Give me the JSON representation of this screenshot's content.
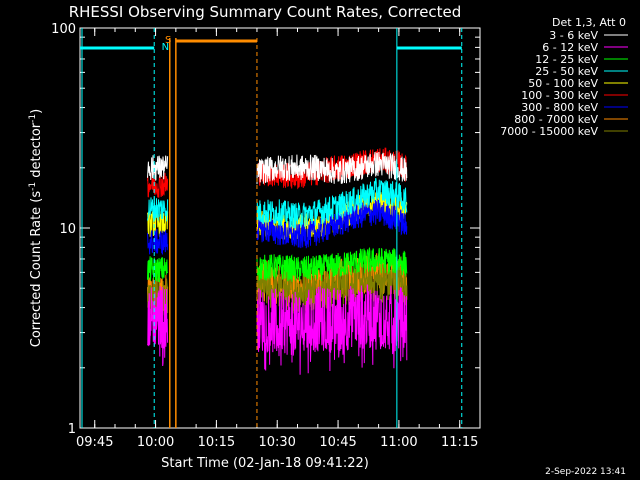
{
  "chart_data": {
    "type": "line",
    "title": "RHESSI Observing Summary Count Rates, Corrected",
    "xlabel": "Start Time (02-Jan-18 09:41:22)",
    "ylabel": "Corrected Count Rate (s⁻¹ detector⁻¹)",
    "ylabel_main": "Corrected Count Rate (s",
    "ylabel_exp1": "-1",
    "ylabel_mid": " detector",
    "ylabel_exp2": "-1",
    "ylabel_end": ")",
    "y_scale": "log",
    "ylim": [
      1,
      100
    ],
    "xlim": [
      "09:41:22",
      "11:20:00"
    ],
    "x_ticks": [
      "09:45",
      "10:00",
      "10:15",
      "10:30",
      "10:45",
      "11:00",
      "11:15"
    ],
    "y_ticks": [
      "1",
      "10",
      "100"
    ],
    "grid": false,
    "legend_position": "top-right",
    "legend_header": "Det 1,3, Att 0",
    "timestamp": "2-Sep-2022 13:41",
    "data_gap": [
      "10:05",
      "10:25"
    ],
    "series": [
      {
        "name": "3 - 6 keV",
        "color": "#ffffff",
        "segments": [
          {
            "t": [
              "09:58",
              "09:59",
              "10:00",
              "10:02",
              "10:03"
            ],
            "y": [
              20,
              20,
              20,
              20,
              20
            ]
          },
          {
            "t": [
              "10:25",
              "10:30",
              "10:35",
              "10:40",
              "10:45",
              "10:50",
              "10:55",
              "11:00",
              "11:02"
            ],
            "y": [
              19,
              20,
              20,
              20,
              19,
              20,
              21,
              20,
              19
            ]
          }
        ]
      },
      {
        "name": "6 - 12 keV",
        "color": "#ff00ff",
        "segments": [
          {
            "t": [
              "09:58",
              "10:00",
              "10:03"
            ],
            "y": [
              3.6,
              3.6,
              3.6
            ]
          },
          {
            "t": [
              "10:25",
              "10:30",
              "10:35",
              "10:40",
              "10:45",
              "10:50",
              "10:55",
              "11:00",
              "11:02"
            ],
            "y": [
              3.5,
              3.4,
              3.3,
              3.5,
              3.5,
              3.6,
              3.6,
              3.5,
              3.5
            ]
          }
        ]
      },
      {
        "name": "12 - 25 keV",
        "color": "#00ff00",
        "segments": [
          {
            "t": [
              "09:58",
              "10:00",
              "10:03"
            ],
            "y": [
              6.2,
              6.2,
              6.2
            ]
          },
          {
            "t": [
              "10:25",
              "10:30",
              "10:35",
              "10:40",
              "10:45",
              "10:50",
              "10:55",
              "11:00",
              "11:02"
            ],
            "y": [
              6.3,
              6.4,
              6.2,
              6.3,
              6.5,
              6.8,
              6.9,
              6.8,
              6.6
            ]
          }
        ]
      },
      {
        "name": "25 - 50 keV",
        "color": "#00ffff",
        "segments": [
          {
            "t": [
              "09:58",
              "10:00",
              "10:03"
            ],
            "y": [
              12.5,
              12.5,
              12.5
            ]
          },
          {
            "t": [
              "10:25",
              "10:30",
              "10:35",
              "10:40",
              "10:45",
              "10:50",
              "10:55",
              "11:00",
              "11:02"
            ],
            "y": [
              12,
              12,
              11.5,
              12,
              12.8,
              14,
              15.5,
              14.5,
              13.5
            ]
          }
        ]
      },
      {
        "name": "50 - 100 keV",
        "color": "#ffff00",
        "segments": [
          {
            "t": [
              "09:58",
              "10:00",
              "10:03"
            ],
            "y": [
              10.5,
              10.5,
              10.5
            ]
          },
          {
            "t": [
              "10:25",
              "10:30",
              "10:35",
              "10:40",
              "10:45",
              "10:50",
              "10:55",
              "11:00",
              "11:02"
            ],
            "y": [
              10.5,
              10.3,
              10,
              10.4,
              11.2,
              12.5,
              13.5,
              12.5,
              12
            ]
          }
        ]
      },
      {
        "name": "100 - 300 keV",
        "color": "#ff0000",
        "segments": [
          {
            "t": [
              "09:58",
              "10:00",
              "10:03"
            ],
            "y": [
              16.5,
              16.5,
              16.5
            ]
          },
          {
            "t": [
              "10:25",
              "10:30",
              "10:35",
              "10:40",
              "10:45",
              "10:50",
              "10:55",
              "11:00",
              "11:02"
            ],
            "y": [
              19,
              18.5,
              18,
              19,
              20,
              21,
              22,
              21,
              19.5
            ]
          }
        ]
      },
      {
        "name": "300 - 800 keV",
        "color": "#0000ff",
        "segments": [
          {
            "t": [
              "09:58",
              "10:00",
              "10:03"
            ],
            "y": [
              8.5,
              8.5,
              8.5
            ]
          },
          {
            "t": [
              "10:25",
              "10:30",
              "10:35",
              "10:40",
              "10:45",
              "10:50",
              "10:55",
              "11:00",
              "11:02"
            ],
            "y": [
              10,
              9.5,
              9,
              9.5,
              10.5,
              11.5,
              12,
              11,
              10
            ]
          }
        ]
      },
      {
        "name": "800 - 7000 keV",
        "color": "#ff8c00",
        "segments": [
          {
            "t": [
              "09:58",
              "10:00",
              "10:03"
            ],
            "y": [
              4.7,
              4.7,
              4.7
            ]
          },
          {
            "t": [
              "10:25",
              "10:30",
              "10:35",
              "10:40",
              "10:45",
              "10:50",
              "10:55",
              "11:00",
              "11:02"
            ],
            "y": [
              5.5,
              5.3,
              5.0,
              5.2,
              5.5,
              5.8,
              6.0,
              5.8,
              5.5
            ]
          }
        ]
      },
      {
        "name": "7000 - 15000 keV",
        "color": "#808000",
        "segments": [
          {
            "t": [
              "09:58",
              "10:00",
              "10:03"
            ],
            "y": [
              4.4,
              4.4,
              4.4
            ]
          },
          {
            "t": [
              "10:25",
              "10:30",
              "10:35",
              "10:40",
              "10:45",
              "10:50",
              "10:55",
              "11:00",
              "11:02"
            ],
            "y": [
              5.0,
              4.9,
              4.8,
              4.9,
              5.1,
              5.3,
              5.4,
              5.3,
              5.1
            ]
          }
        ]
      }
    ],
    "flags": [
      {
        "label": "N",
        "color": "#00ffff"
      },
      {
        "label": "S",
        "color": "#ff8c00"
      }
    ]
  }
}
